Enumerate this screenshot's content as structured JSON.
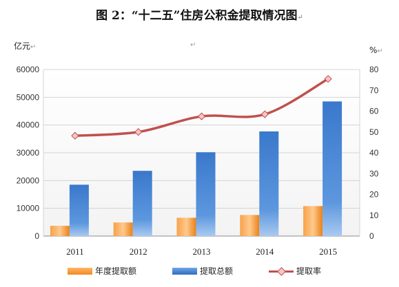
{
  "chart_data": {
    "type": "bar",
    "title": "图 2：“十二五”住房公积金提取情况图",
    "categories": [
      "2011",
      "2012",
      "2013",
      "2014",
      "2015"
    ],
    "left_axis": {
      "unit": "亿元",
      "ylim": [
        0,
        60000
      ],
      "ticks": [
        0,
        10000,
        20000,
        30000,
        40000,
        50000,
        60000
      ]
    },
    "right_axis": {
      "unit": "%",
      "ylim": [
        0,
        80
      ],
      "ticks": [
        0,
        10,
        20,
        30,
        40,
        50,
        60,
        70,
        80
      ]
    },
    "series": [
      {
        "name": "年度提取额",
        "type": "bar",
        "axis": "left",
        "color": "#f08a1e",
        "values": [
          3700,
          4900,
          6600,
          7600,
          10800
        ]
      },
      {
        "name": "提取总额",
        "type": "bar",
        "axis": "left",
        "color": "#2f6cc1",
        "values": [
          18500,
          23500,
          30200,
          37700,
          48500
        ]
      },
      {
        "name": "提取率",
        "type": "line",
        "axis": "right",
        "color": "#c0504d",
        "values": [
          48.2,
          50.0,
          57.5,
          58.5,
          75.5
        ]
      }
    ],
    "grid": true,
    "legend": "bottom"
  }
}
